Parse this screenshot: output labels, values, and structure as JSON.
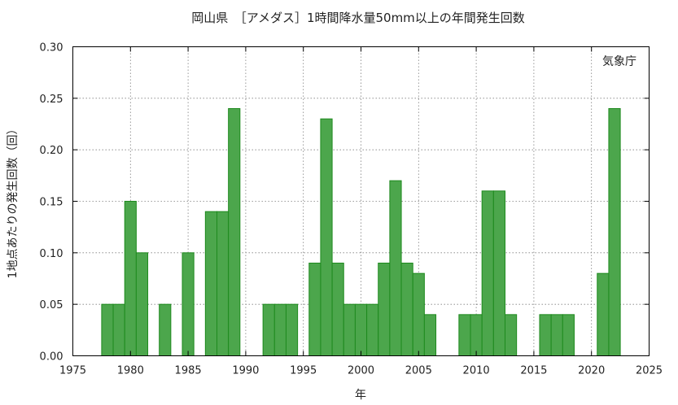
{
  "chart_data": {
    "type": "bar",
    "title": "岡山県　［アメダス］1時間降水量50mm以上の年間発生回数",
    "xlabel": "年",
    "ylabel": "1地点あたりの発生回数（回）",
    "source": "気象庁",
    "xlim": [
      1975,
      2025
    ],
    "ylim": [
      0,
      0.3
    ],
    "xticks": [
      1975,
      1980,
      1985,
      1990,
      1995,
      2000,
      2005,
      2010,
      2015,
      2020,
      2025
    ],
    "yticks": [
      "0.00",
      "0.05",
      "0.10",
      "0.15",
      "0.20",
      "0.25",
      "0.30"
    ],
    "grid": true,
    "colors": {
      "bar_fill": "#4ca64c",
      "bar_edge": "#1e8a1e"
    },
    "x": [
      1976,
      1977,
      1978,
      1979,
      1980,
      1981,
      1982,
      1983,
      1984,
      1985,
      1986,
      1987,
      1988,
      1989,
      1990,
      1991,
      1992,
      1993,
      1994,
      1995,
      1996,
      1997,
      1998,
      1999,
      2000,
      2001,
      2002,
      2003,
      2004,
      2005,
      2006,
      2007,
      2008,
      2009,
      2010,
      2011,
      2012,
      2013,
      2014,
      2015,
      2016,
      2017,
      2018,
      2019,
      2020,
      2021,
      2022,
      2023
    ],
    "values": [
      0,
      0,
      0.05,
      0.05,
      0.15,
      0.1,
      0,
      0.05,
      0,
      0.1,
      0,
      0.14,
      0.14,
      0.24,
      0,
      0,
      0.05,
      0.05,
      0.05,
      0,
      0.09,
      0.23,
      0.09,
      0.05,
      0.05,
      0.05,
      0.09,
      0.17,
      0.09,
      0.08,
      0.04,
      0,
      0,
      0.04,
      0.04,
      0.16,
      0.16,
      0.04,
      0,
      0,
      0.04,
      0.04,
      0.04,
      0,
      0,
      0.08,
      0.24,
      0
    ]
  }
}
